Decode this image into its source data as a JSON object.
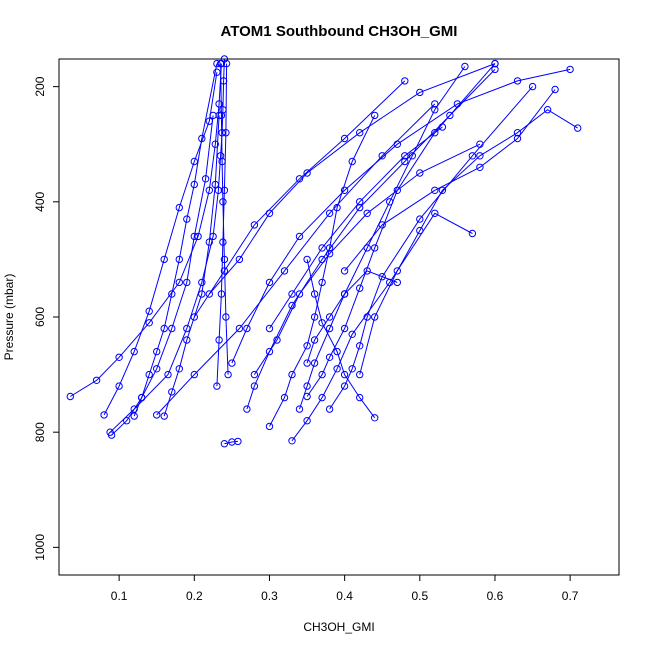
{
  "chart_data": {
    "type": "line",
    "title": "ATOM1 Southbound CH3OH_GMI",
    "xlabel": "CH3OH_GMI",
    "ylabel": "Pressure (mbar)",
    "xlim": [
      0.02,
      0.765
    ],
    "ylim": [
      1048,
      152
    ],
    "y_reversed": true,
    "x_ticks": [
      0.1,
      0.2,
      0.3,
      0.4,
      0.5,
      0.6,
      0.7
    ],
    "x_tick_labels": [
      "0.1",
      "0.2",
      "0.3",
      "0.4",
      "0.5",
      "0.6",
      "0.7"
    ],
    "y_ticks": [
      200,
      400,
      600,
      800,
      1000
    ],
    "y_tick_labels": [
      "200",
      "400",
      "600",
      "800",
      "1000"
    ],
    "marker": "open-circle",
    "line_color": "#0000ff",
    "grid": false,
    "series": [
      {
        "x": [
          0.088,
          0.12,
          0.165,
          0.19,
          0.21,
          0.225,
          0.232,
          0.235,
          0.237,
          0.238,
          0.239,
          0.24
        ],
        "y": [
          800,
          760,
          700,
          620,
          540,
          460,
          380,
          320,
          280,
          240,
          190,
          152
        ]
      },
      {
        "x": [
          0.035,
          0.07,
          0.1,
          0.14,
          0.18,
          0.205,
          0.22,
          0.228,
          0.233,
          0.236
        ],
        "y": [
          738,
          710,
          670,
          610,
          540,
          460,
          380,
          300,
          230,
          160
        ]
      },
      {
        "x": [
          0.09,
          0.11,
          0.13,
          0.15,
          0.17,
          0.19,
          0.2,
          0.215,
          0.225
        ],
        "y": [
          805,
          780,
          740,
          690,
          620,
          540,
          460,
          360,
          250
        ]
      },
      {
        "x": [
          0.08,
          0.1,
          0.12,
          0.14,
          0.16,
          0.18,
          0.2,
          0.22,
          0.23
        ],
        "y": [
          770,
          720,
          660,
          590,
          500,
          410,
          330,
          260,
          175
        ]
      },
      {
        "x": [
          0.12,
          0.13,
          0.14,
          0.15,
          0.16,
          0.17,
          0.18,
          0.19,
          0.2,
          0.21,
          0.23
        ],
        "y": [
          772,
          740,
          700,
          660,
          620,
          560,
          500,
          430,
          370,
          290,
          160
        ]
      },
      {
        "x": [
          0.16,
          0.17,
          0.18,
          0.19,
          0.21,
          0.22,
          0.228,
          0.233
        ],
        "y": [
          772,
          730,
          690,
          640,
          560,
          470,
          370,
          250
        ]
      },
      {
        "x": [
          0.23,
          0.233,
          0.236,
          0.238,
          0.24,
          0.242,
          0.243
        ],
        "y": [
          720,
          640,
          560,
          470,
          380,
          280,
          160
        ]
      },
      {
        "x": [
          0.245,
          0.242,
          0.24,
          0.238,
          0.237,
          0.236,
          0.235
        ],
        "y": [
          700,
          600,
          500,
          400,
          330,
          250,
          160
        ]
      },
      {
        "x": [
          0.24,
          0.25,
          0.258
        ],
        "y": [
          820,
          817,
          816
        ]
      },
      {
        "x": [
          0.3,
          0.32,
          0.33,
          0.35,
          0.36,
          0.37,
          0.38,
          0.39,
          0.41,
          0.44
        ],
        "y": [
          790,
          740,
          700,
          650,
          600,
          540,
          480,
          410,
          330,
          250
        ]
      },
      {
        "x": [
          0.34,
          0.35,
          0.36,
          0.38,
          0.4,
          0.43,
          0.46,
          0.49,
          0.52,
          0.56
        ],
        "y": [
          760,
          720,
          680,
          620,
          560,
          480,
          400,
          320,
          240,
          165
        ]
      },
      {
        "x": [
          0.35,
          0.37,
          0.38,
          0.4,
          0.42,
          0.44,
          0.47,
          0.52,
          0.6
        ],
        "y": [
          738,
          700,
          670,
          620,
          550,
          480,
          380,
          280,
          160
        ]
      },
      {
        "x": [
          0.38,
          0.4,
          0.41,
          0.42,
          0.43,
          0.45,
          0.5,
          0.57,
          0.65
        ],
        "y": [
          760,
          720,
          690,
          650,
          600,
          530,
          430,
          320,
          200
        ]
      },
      {
        "x": [
          0.44,
          0.42,
          0.4,
          0.39,
          0.37,
          0.36,
          0.35
        ],
        "y": [
          775,
          740,
          700,
          660,
          610,
          560,
          500
        ]
      },
      {
        "x": [
          0.27,
          0.28,
          0.3,
          0.33,
          0.37,
          0.42,
          0.48,
          0.54,
          0.6
        ],
        "y": [
          760,
          720,
          660,
          580,
          500,
          410,
          330,
          250,
          170
        ]
      },
      {
        "x": [
          0.25,
          0.27,
          0.3,
          0.34,
          0.4,
          0.47,
          0.55,
          0.63,
          0.7
        ],
        "y": [
          680,
          620,
          540,
          460,
          380,
          300,
          230,
          190,
          170
        ]
      },
      {
        "x": [
          0.42,
          0.44,
          0.47,
          0.5,
          0.53,
          0.58,
          0.63,
          0.67,
          0.71
        ],
        "y": [
          700,
          600,
          520,
          450,
          380,
          320,
          280,
          240,
          272
        ]
      },
      {
        "x": [
          0.4,
          0.45,
          0.52,
          0.58,
          0.63,
          0.68
        ],
        "y": [
          520,
          440,
          380,
          340,
          290,
          205
        ]
      },
      {
        "x": [
          0.3,
          0.33,
          0.37,
          0.42,
          0.48,
          0.53
        ],
        "y": [
          620,
          560,
          480,
          400,
          320,
          270
        ]
      },
      {
        "x": [
          0.22,
          0.26,
          0.3,
          0.35,
          0.42,
          0.5,
          0.6
        ],
        "y": [
          560,
          500,
          420,
          350,
          280,
          210,
          160
        ]
      },
      {
        "x": [
          0.2,
          0.24,
          0.28,
          0.34,
          0.4,
          0.48
        ],
        "y": [
          600,
          520,
          440,
          360,
          290,
          190
        ]
      },
      {
        "x": [
          0.15,
          0.2,
          0.26,
          0.32,
          0.38,
          0.45,
          0.52
        ],
        "y": [
          770,
          700,
          620,
          520,
          420,
          320,
          230
        ]
      },
      {
        "x": [
          0.33,
          0.35,
          0.37,
          0.39,
          0.41,
          0.46,
          0.52,
          0.57
        ],
        "y": [
          815,
          780,
          740,
          690,
          630,
          540,
          420,
          455
        ]
      },
      {
        "x": [
          0.28,
          0.31,
          0.34,
          0.38,
          0.43,
          0.5,
          0.58
        ],
        "y": [
          700,
          640,
          560,
          490,
          420,
          350,
          300
        ]
      },
      {
        "x": [
          0.35,
          0.36,
          0.38,
          0.4,
          0.43,
          0.47
        ],
        "y": [
          680,
          640,
          600,
          560,
          520,
          540
        ]
      }
    ]
  }
}
